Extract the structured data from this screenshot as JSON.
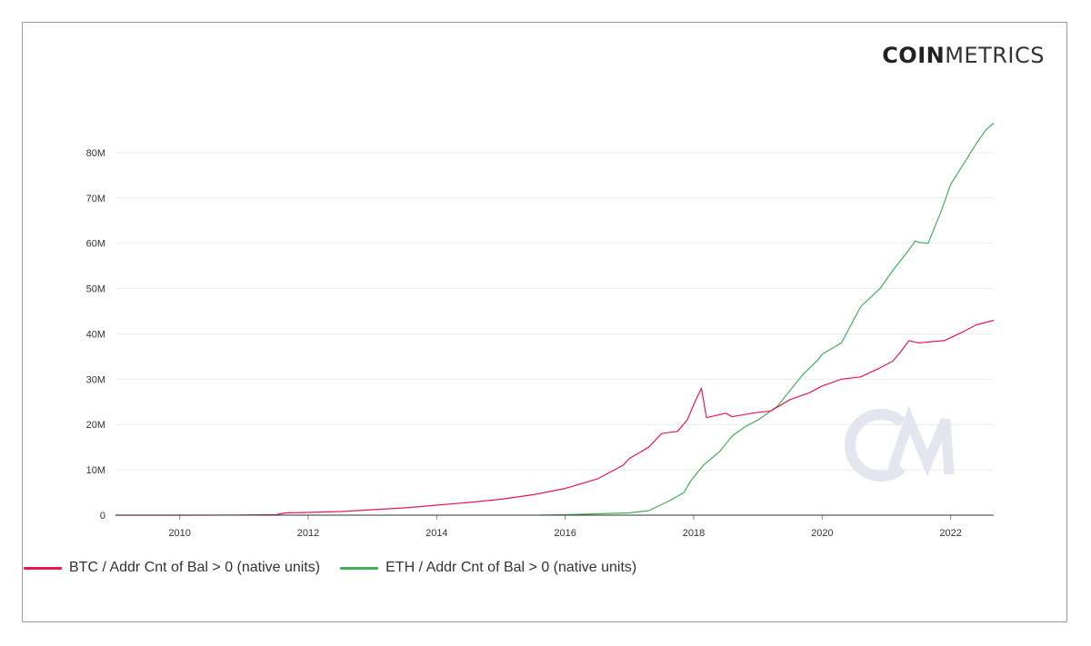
{
  "brand": {
    "coin": "COIN",
    "metrics": "METRICS"
  },
  "colors": {
    "btc": "#e8184b",
    "eth": "#42b05a",
    "grid": "#ececec",
    "axis": "#333333",
    "text": "#333333"
  },
  "chart_data": {
    "type": "line",
    "title": "",
    "xlabel": "",
    "ylabel": "",
    "xlim": [
      2009.0,
      2022.67
    ],
    "ylim": [
      0,
      90000000
    ],
    "x_ticks": [
      2010,
      2012,
      2014,
      2016,
      2018,
      2020,
      2022
    ],
    "y_ticks": [
      0,
      10000000,
      20000000,
      30000000,
      40000000,
      50000000,
      60000000,
      70000000,
      80000000
    ],
    "y_tick_labels": [
      "0",
      "10M",
      "20M",
      "30M",
      "40M",
      "50M",
      "60M",
      "70M",
      "80M"
    ],
    "grid": true,
    "legend_position": "bottom-left",
    "series": [
      {
        "name": "BTC / Addr Cnt of Bal > 0 (native units)",
        "color": "#e8184b",
        "x": [
          2009.0,
          2010.0,
          2011.0,
          2011.5,
          2011.65,
          2012.0,
          2012.5,
          2013.0,
          2013.5,
          2014.0,
          2014.5,
          2015.0,
          2015.5,
          2016.0,
          2016.5,
          2016.9,
          2017.0,
          2017.3,
          2017.5,
          2017.75,
          2017.9,
          2018.02,
          2018.12,
          2018.2,
          2018.5,
          2018.6,
          2018.9,
          2019.2,
          2019.5,
          2019.8,
          2020.0,
          2020.3,
          2020.6,
          2020.9,
          2021.1,
          2021.22,
          2021.35,
          2021.5,
          2021.9,
          2022.2,
          2022.4,
          2022.67
        ],
        "values": [
          0,
          0,
          20000,
          100000,
          500000,
          600000,
          800000,
          1200000,
          1600000,
          2200000,
          2800000,
          3500000,
          4500000,
          5900000,
          8000000,
          11000000,
          12500000,
          15000000,
          18000000,
          18500000,
          21000000,
          25000000,
          28000000,
          21500000,
          22500000,
          21700000,
          22500000,
          23000000,
          25500000,
          27000000,
          28500000,
          30000000,
          30500000,
          32500000,
          34000000,
          36000000,
          38500000,
          38000000,
          38500000,
          40500000,
          42000000,
          43000000
        ]
      },
      {
        "name": "ETH / Addr Cnt of Bal > 0 (native units)",
        "color": "#42b05a",
        "x": [
          2015.6,
          2016.0,
          2016.5,
          2017.0,
          2017.3,
          2017.6,
          2017.85,
          2017.95,
          2018.15,
          2018.4,
          2018.6,
          2018.8,
          2019.0,
          2019.3,
          2019.5,
          2019.7,
          2019.95,
          2020.0,
          2020.3,
          2020.6,
          2020.9,
          2021.1,
          2021.35,
          2021.45,
          2021.5,
          2021.65,
          2021.85,
          2022.0,
          2022.2,
          2022.4,
          2022.55,
          2022.67
        ],
        "values": [
          0,
          100000,
          300000,
          500000,
          1000000,
          3000000,
          5000000,
          7500000,
          11000000,
          14000000,
          17500000,
          19500000,
          21000000,
          24000000,
          27500000,
          31000000,
          34500000,
          35500000,
          38000000,
          46000000,
          50000000,
          54000000,
          58500000,
          60500000,
          60200000,
          60000000,
          67000000,
          73000000,
          77500000,
          82000000,
          85000000,
          86500000
        ]
      }
    ]
  }
}
